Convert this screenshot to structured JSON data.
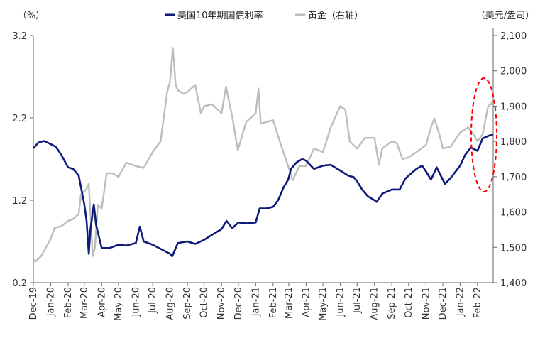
{
  "chart_data": {
    "type": "line",
    "title": "",
    "y_left_unit": "（%）",
    "y_right_unit": "（美元/盎司）",
    "y_left": {
      "min": 0.2,
      "max": 3.2,
      "ticks": [
        "0.2",
        "1.2",
        "2.2",
        "3.2"
      ]
    },
    "y_right": {
      "min": 1400,
      "max": 2100,
      "ticks": [
        "1,400",
        "1,500",
        "1,600",
        "1,700",
        "1,800",
        "1,900",
        "2,000",
        "2,100"
      ]
    },
    "x_ticks": [
      "Dec-19",
      "Jan-20",
      "Feb-20",
      "Mar-20",
      "Apr-20",
      "May-20",
      "Jun-20",
      "Jul-20",
      "Aug-20",
      "Sep-20",
      "Oct-20",
      "Nov-20",
      "Dec-20",
      "Jan-21",
      "Feb-21",
      "Mar-21",
      "Apr-21",
      "May-21",
      "Jun-21",
      "Jul-21",
      "Aug-21",
      "Sep-21",
      "Oct-21",
      "Nov-21",
      "Dec-21",
      "Jan-22",
      "Feb-22"
    ],
    "highlight": "dashed red ellipse around latest values",
    "series": [
      {
        "name": "美国10年期国债利率",
        "axis": "left",
        "color": "#0d1a7a",
        "x": [
          "2019-12-01",
          "2019-12-10",
          "2019-12-20",
          "2020-01-01",
          "2020-01-10",
          "2020-01-20",
          "2020-02-01",
          "2020-02-10",
          "2020-02-20",
          "2020-03-01",
          "2020-03-05",
          "2020-03-09",
          "2020-03-12",
          "2020-03-18",
          "2020-03-22",
          "2020-04-01",
          "2020-04-15",
          "2020-05-01",
          "2020-05-15",
          "2020-06-01",
          "2020-06-08",
          "2020-06-15",
          "2020-07-01",
          "2020-07-15",
          "2020-08-01",
          "2020-08-05",
          "2020-08-15",
          "2020-09-01",
          "2020-09-15",
          "2020-10-01",
          "2020-10-15",
          "2020-11-01",
          "2020-11-10",
          "2020-11-20",
          "2020-12-01",
          "2020-12-15",
          "2021-01-01",
          "2021-01-08",
          "2021-01-20",
          "2021-02-01",
          "2021-02-10",
          "2021-02-20",
          "2021-02-28",
          "2021-03-05",
          "2021-03-15",
          "2021-03-25",
          "2021-04-01",
          "2021-04-15",
          "2021-05-01",
          "2021-05-15",
          "2021-06-01",
          "2021-06-15",
          "2021-06-25",
          "2021-07-01",
          "2021-07-10",
          "2021-07-20",
          "2021-08-01",
          "2021-08-05",
          "2021-08-15",
          "2021-09-01",
          "2021-09-15",
          "2021-09-25",
          "2021-10-01",
          "2021-10-15",
          "2021-10-25",
          "2021-11-01",
          "2021-11-10",
          "2021-11-20",
          "2021-12-01",
          "2021-12-05",
          "2021-12-15",
          "2022-01-01",
          "2022-01-10",
          "2022-01-20",
          "2022-02-01",
          "2022-02-10",
          "2022-02-20",
          "2022-03-01"
        ],
        "values": [
          1.83,
          1.9,
          1.92,
          1.88,
          1.85,
          1.75,
          1.6,
          1.58,
          1.5,
          1.15,
          0.95,
          0.55,
          0.85,
          1.15,
          0.9,
          0.62,
          0.62,
          0.66,
          0.65,
          0.68,
          0.88,
          0.7,
          0.66,
          0.61,
          0.55,
          0.52,
          0.68,
          0.7,
          0.67,
          0.72,
          0.78,
          0.85,
          0.95,
          0.86,
          0.93,
          0.92,
          0.93,
          1.1,
          1.1,
          1.12,
          1.2,
          1.36,
          1.45,
          1.58,
          1.66,
          1.7,
          1.68,
          1.58,
          1.62,
          1.63,
          1.56,
          1.5,
          1.48,
          1.43,
          1.33,
          1.25,
          1.2,
          1.18,
          1.28,
          1.33,
          1.33,
          1.46,
          1.5,
          1.58,
          1.62,
          1.55,
          1.45,
          1.6,
          1.45,
          1.4,
          1.47,
          1.62,
          1.75,
          1.84,
          1.8,
          1.95,
          1.98,
          2.0
        ]
      },
      {
        "name": "黄金（右轴）",
        "axis": "right",
        "color": "#bdbdbd",
        "x": [
          "2019-12-01",
          "2019-12-05",
          "2019-12-15",
          "2020-01-01",
          "2020-01-08",
          "2020-01-20",
          "2020-02-01",
          "2020-02-10",
          "2020-02-20",
          "2020-02-24",
          "2020-03-05",
          "2020-03-09",
          "2020-03-16",
          "2020-03-20",
          "2020-03-25",
          "2020-04-01",
          "2020-04-10",
          "2020-04-20",
          "2020-05-01",
          "2020-05-15",
          "2020-06-01",
          "2020-06-15",
          "2020-07-01",
          "2020-07-15",
          "2020-07-27",
          "2020-08-01",
          "2020-08-06",
          "2020-08-11",
          "2020-08-15",
          "2020-08-25",
          "2020-09-01",
          "2020-09-15",
          "2020-09-25",
          "2020-10-01",
          "2020-10-15",
          "2020-11-01",
          "2020-11-09",
          "2020-11-20",
          "2020-11-30",
          "2020-12-15",
          "2021-01-01",
          "2021-01-06",
          "2021-01-10",
          "2021-01-20",
          "2021-02-01",
          "2021-02-15",
          "2021-02-28",
          "2021-03-08",
          "2021-03-20",
          "2021-04-01",
          "2021-04-15",
          "2021-05-01",
          "2021-05-15",
          "2021-06-01",
          "2021-06-10",
          "2021-06-18",
          "2021-07-01",
          "2021-07-15",
          "2021-08-01",
          "2021-08-09",
          "2021-08-15",
          "2021-09-01",
          "2021-09-10",
          "2021-09-20",
          "2021-10-01",
          "2021-10-15",
          "2021-11-01",
          "2021-11-10",
          "2021-11-16",
          "2021-11-25",
          "2021-12-01",
          "2021-12-15",
          "2022-01-01",
          "2022-01-15",
          "2022-01-25",
          "2022-02-01",
          "2022-02-10",
          "2022-02-20",
          "2022-02-25",
          "2022-03-01"
        ],
        "values": [
          1465,
          1460,
          1475,
          1525,
          1555,
          1560,
          1575,
          1580,
          1595,
          1650,
          1665,
          1680,
          1475,
          1500,
          1620,
          1610,
          1710,
          1710,
          1700,
          1740,
          1730,
          1725,
          1770,
          1800,
          1940,
          1970,
          2065,
          1960,
          1945,
          1935,
          1940,
          1960,
          1880,
          1900,
          1905,
          1880,
          1955,
          1870,
          1775,
          1855,
          1880,
          1950,
          1850,
          1855,
          1860,
          1790,
          1730,
          1690,
          1730,
          1730,
          1780,
          1770,
          1840,
          1900,
          1890,
          1800,
          1780,
          1810,
          1810,
          1735,
          1780,
          1800,
          1795,
          1750,
          1755,
          1770,
          1790,
          1840,
          1865,
          1820,
          1780,
          1785,
          1825,
          1840,
          1820,
          1800,
          1820,
          1900,
          1905,
          1920
        ]
      }
    ]
  },
  "legend": {
    "treasury_label": "美国10年期国债利率",
    "gold_label": "黄金（右轴）"
  }
}
